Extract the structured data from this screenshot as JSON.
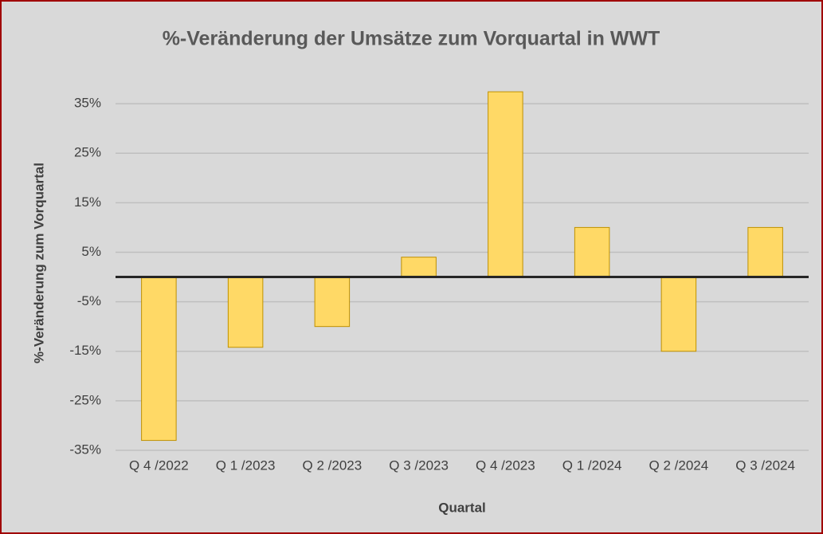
{
  "chart_data": {
    "type": "bar",
    "title": "%-Veränderung der Umsätze zum Vorquartal in WWT",
    "x_label": "Quartal",
    "y_label": "%-Veränderung zum Vorquartal",
    "categories": [
      "Q 4 /2022",
      "Q 1 /2023",
      "Q 2 /2023",
      "Q 3 /2023",
      "Q 4 /2023",
      "Q 1 /2024",
      "Q 2 /2024",
      "Q 3 /2024"
    ],
    "values": [
      -33,
      -14.2,
      -10,
      4,
      37.4,
      10,
      -15,
      10
    ],
    "color": "#ffd966",
    "ylim": [
      -35,
      40
    ],
    "yticks": [
      {
        "value": -35,
        "label": "-35%"
      },
      {
        "value": -25,
        "label": "-25%"
      },
      {
        "value": -15,
        "label": "-15%"
      },
      {
        "value": -5,
        "label": "-5%"
      },
      {
        "value": 5,
        "label": "5%"
      },
      {
        "value": 15,
        "label": "15%"
      },
      {
        "value": 25,
        "label": "25%"
      },
      {
        "value": 35,
        "label": "35%"
      }
    ],
    "grid": true
  }
}
